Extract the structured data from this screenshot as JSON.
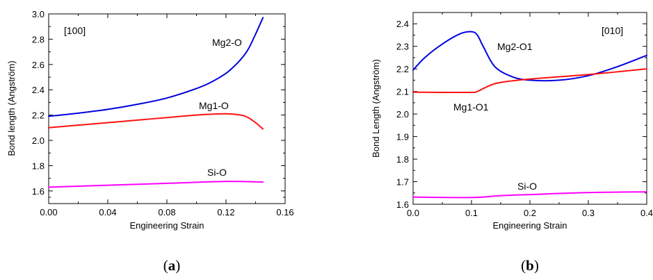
{
  "chart_data": [
    {
      "type": "line",
      "panel_label": "a",
      "direction_label": "[100]",
      "xlabel": "Engineering Strain",
      "ylabel": "Bond length (Angström)",
      "xlim": [
        0,
        0.16
      ],
      "ylim": [
        1.5,
        3.0
      ],
      "x_ticks": [
        "0.00",
        "0.04",
        "0.08",
        "0.12",
        "0.16"
      ],
      "y_ticks": [
        "1.6",
        "1.8",
        "2.0",
        "2.2",
        "2.4",
        "2.6",
        "2.8",
        "3.0"
      ],
      "grid": false,
      "series": [
        {
          "name": "Mg2-O",
          "color": "#0000e0",
          "x": [
            0.0,
            0.02,
            0.04,
            0.06,
            0.08,
            0.1,
            0.11,
            0.12,
            0.125,
            0.13,
            0.135,
            0.14,
            0.145
          ],
          "y": [
            2.19,
            2.215,
            2.245,
            2.285,
            2.335,
            2.41,
            2.46,
            2.53,
            2.58,
            2.64,
            2.72,
            2.84,
            2.97
          ]
        },
        {
          "name": "Mg1-O",
          "color": "#ff1010",
          "x": [
            0.0,
            0.02,
            0.04,
            0.06,
            0.08,
            0.1,
            0.12,
            0.13,
            0.135,
            0.14,
            0.145
          ],
          "y": [
            2.1,
            2.12,
            2.14,
            2.16,
            2.18,
            2.2,
            2.21,
            2.2,
            2.18,
            2.14,
            2.09
          ]
        },
        {
          "name": "Si-O",
          "color": "#ff00ff",
          "x": [
            0.0,
            0.04,
            0.08,
            0.12,
            0.145
          ],
          "y": [
            1.63,
            1.645,
            1.66,
            1.675,
            1.67
          ]
        }
      ]
    },
    {
      "type": "line",
      "panel_label": "b",
      "direction_label": "[010]",
      "xlabel": "Engineering Strain",
      "ylabel": "Bond Length (Angström)",
      "xlim": [
        0,
        0.4
      ],
      "ylim": [
        1.6,
        2.45
      ],
      "x_ticks": [
        "0.0",
        "0.1",
        "0.2",
        "0.3",
        "0.4"
      ],
      "y_ticks": [
        "1.6",
        "1.7",
        "1.8",
        "1.9",
        "2.0",
        "2.1",
        "2.2",
        "2.3",
        "2.4"
      ],
      "grid": false,
      "series": [
        {
          "name": "Mg2-O1",
          "color": "#0000e0",
          "x": [
            0.0,
            0.02,
            0.05,
            0.08,
            0.1,
            0.11,
            0.12,
            0.14,
            0.17,
            0.2,
            0.25,
            0.3,
            0.35,
            0.4
          ],
          "y": [
            2.195,
            2.25,
            2.31,
            2.355,
            2.365,
            2.35,
            2.3,
            2.21,
            2.165,
            2.15,
            2.15,
            2.17,
            2.21,
            2.26
          ]
        },
        {
          "name": "Mg1-O1",
          "color": "#ff1010",
          "x": [
            0.0,
            0.05,
            0.1,
            0.11,
            0.13,
            0.15,
            0.2,
            0.3,
            0.4
          ],
          "y": [
            2.097,
            2.096,
            2.096,
            2.1,
            2.125,
            2.14,
            2.155,
            2.175,
            2.2
          ]
        },
        {
          "name": "Si-O",
          "color": "#ff00ff",
          "x": [
            0.0,
            0.1,
            0.15,
            0.2,
            0.3,
            0.4
          ],
          "y": [
            1.632,
            1.63,
            1.638,
            1.643,
            1.652,
            1.655
          ]
        }
      ]
    }
  ]
}
